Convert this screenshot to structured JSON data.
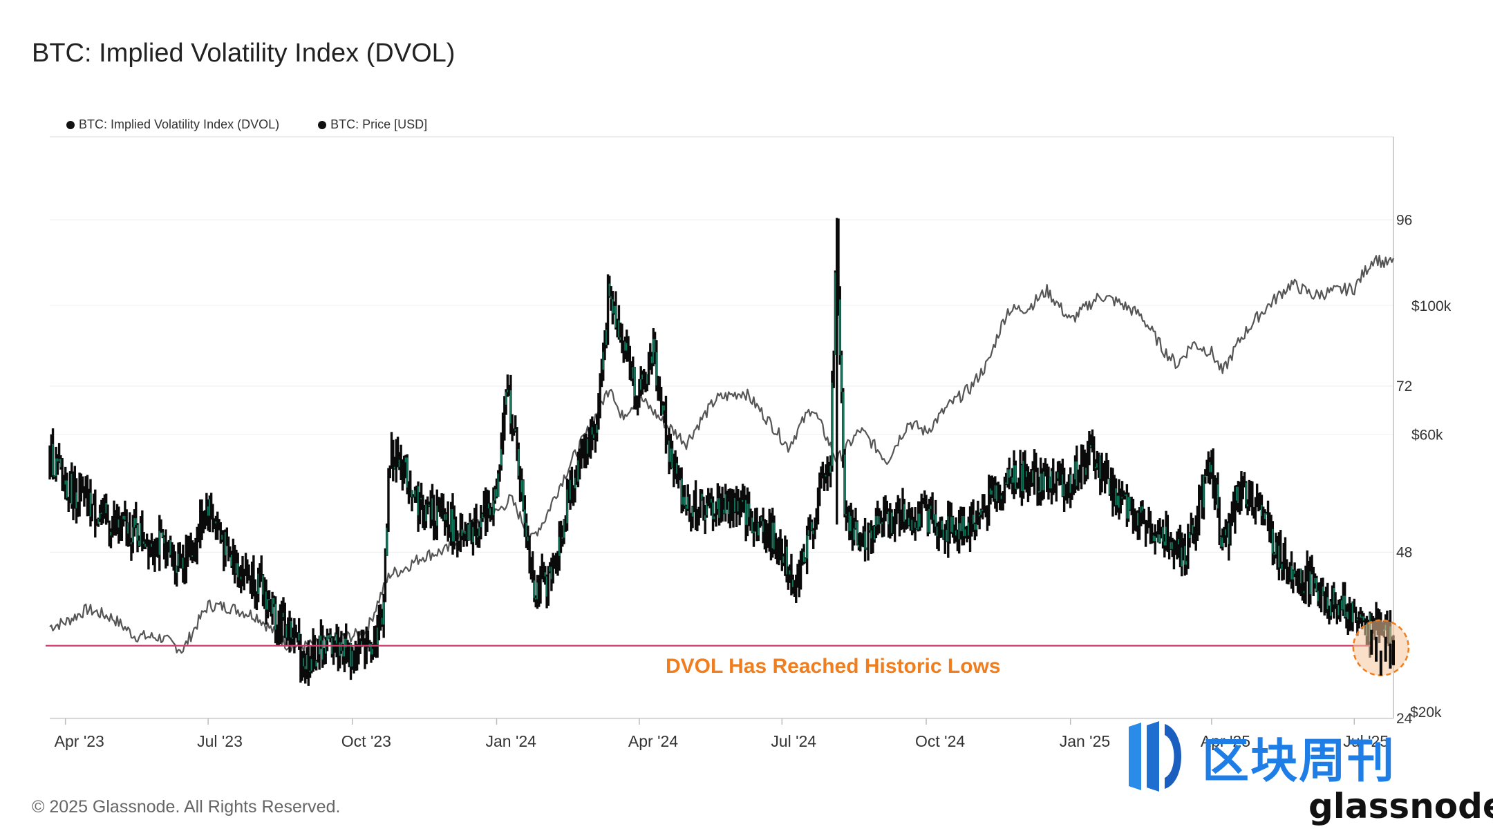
{
  "header": {
    "title": "BTC: Implied Volatility Index (DVOL)"
  },
  "footer": {
    "copyright": "© 2025 Glassnode. All Rights Reserved."
  },
  "watermark": {
    "cn_text": "区块周刊",
    "brand": "glassnode"
  },
  "colors": {
    "dvol": "#0a0a0a",
    "dvol_body": "#0e7a5e",
    "price": "#555555",
    "threshold": "#d63a6a",
    "annotation": "#f07d1e",
    "highlight_fill": "#f6c79a"
  },
  "chart_data": {
    "type": "line",
    "title": "BTC: Implied Volatility Index (DVOL)",
    "legend": [
      "BTC: Implied Volatility Index (DVOL)",
      "BTC: Price [USD]"
    ],
    "legend_position": "top-left",
    "x_ticks": [
      "Apr '23",
      "Jul '23",
      "Oct '23",
      "Jan '24",
      "Apr '24",
      "Jul '24",
      "Oct '24",
      "Jan '25",
      "Apr '25",
      "Jul '25"
    ],
    "xlim": [
      "2023-03-22",
      "2025-07-26"
    ],
    "y_right": {
      "ticks": [
        24,
        48,
        72,
        96
      ],
      "range": [
        24,
        108
      ],
      "label": ""
    },
    "y_price": {
      "ticks": [
        "$20k",
        "$60k",
        "$100k"
      ],
      "values": [
        20000,
        60000,
        100000
      ],
      "scale": "log"
    },
    "series": [
      {
        "name": "BTC: Implied Volatility Index (DVOL)",
        "x": [
          "2023-03-22",
          "2023-04-01",
          "2023-04-15",
          "2023-05-01",
          "2023-05-15",
          "2023-06-01",
          "2023-06-10",
          "2023-06-20",
          "2023-07-01",
          "2023-07-15",
          "2023-08-01",
          "2023-08-15",
          "2023-08-25",
          "2023-09-01",
          "2023-09-10",
          "2023-09-20",
          "2023-10-01",
          "2023-10-10",
          "2023-10-20",
          "2023-10-25",
          "2023-11-01",
          "2023-11-15",
          "2023-12-01",
          "2023-12-10",
          "2023-12-20",
          "2024-01-01",
          "2024-01-08",
          "2024-01-15",
          "2024-01-25",
          "2024-02-05",
          "2024-02-15",
          "2024-02-25",
          "2024-03-05",
          "2024-03-12",
          "2024-03-20",
          "2024-04-01",
          "2024-04-10",
          "2024-04-20",
          "2024-05-01",
          "2024-05-15",
          "2024-06-01",
          "2024-06-15",
          "2024-07-01",
          "2024-07-10",
          "2024-07-20",
          "2024-08-01",
          "2024-08-05",
          "2024-08-10",
          "2024-08-20",
          "2024-09-01",
          "2024-09-15",
          "2024-10-01",
          "2024-10-15",
          "2024-11-01",
          "2024-11-12",
          "2024-11-25",
          "2024-12-05",
          "2024-12-20",
          "2025-01-01",
          "2025-01-15",
          "2025-02-01",
          "2025-02-15",
          "2025-03-01",
          "2025-03-15",
          "2025-04-01",
          "2025-04-08",
          "2025-04-20",
          "2025-05-01",
          "2025-05-15",
          "2025-06-01",
          "2025-06-15",
          "2025-07-01",
          "2025-07-10",
          "2025-07-20",
          "2025-07-26"
        ],
        "y": [
          62,
          58,
          55,
          52,
          51,
          49,
          47,
          48,
          55,
          47,
          44,
          38,
          36,
          32,
          34,
          35,
          33,
          34,
          38,
          62,
          61,
          54,
          53,
          49,
          52,
          56,
          72,
          60,
          43,
          44,
          55,
          63,
          66,
          85,
          80,
          70,
          77,
          62,
          55,
          54,
          55,
          52,
          49,
          43,
          52,
          62,
          95,
          52,
          50,
          52,
          53,
          53,
          51,
          52,
          56,
          59,
          59,
          58,
          58,
          62,
          55,
          53,
          51,
          47,
          62,
          48,
          58,
          54,
          47,
          44,
          41,
          39,
          37,
          38,
          33
        ]
      },
      {
        "name": "BTC: Price [USD]",
        "x": [
          "2023-03-22",
          "2023-04-01",
          "2023-04-15",
          "2023-05-01",
          "2023-05-15",
          "2023-06-01",
          "2023-06-15",
          "2023-07-01",
          "2023-07-15",
          "2023-08-01",
          "2023-08-20",
          "2023-09-01",
          "2023-09-15",
          "2023-10-01",
          "2023-10-10",
          "2023-10-25",
          "2023-11-01",
          "2023-11-15",
          "2023-12-01",
          "2023-12-15",
          "2024-01-01",
          "2024-01-10",
          "2024-01-23",
          "2024-02-01",
          "2024-02-15",
          "2024-03-01",
          "2024-03-14",
          "2024-03-20",
          "2024-04-01",
          "2024-04-15",
          "2024-05-01",
          "2024-05-20",
          "2024-06-07",
          "2024-06-20",
          "2024-07-05",
          "2024-07-20",
          "2024-08-05",
          "2024-08-20",
          "2024-09-06",
          "2024-09-20",
          "2024-10-01",
          "2024-10-15",
          "2024-10-29",
          "2024-11-10",
          "2024-11-15",
          "2024-11-22",
          "2024-12-05",
          "2024-12-17",
          "2025-01-01",
          "2025-01-20",
          "2025-02-01",
          "2025-02-15",
          "2025-03-01",
          "2025-03-10",
          "2025-03-20",
          "2025-04-01",
          "2025-04-08",
          "2025-04-20",
          "2025-05-01",
          "2025-05-22",
          "2025-06-05",
          "2025-06-20",
          "2025-07-01",
          "2025-07-14",
          "2025-07-20",
          "2025-07-26"
        ],
        "y": [
          28000,
          28500,
          30000,
          29000,
          27000,
          26800,
          25500,
          30500,
          30200,
          29200,
          26100,
          25900,
          26500,
          27000,
          27400,
          34500,
          35000,
          37000,
          38000,
          42000,
          44000,
          46500,
          39500,
          43000,
          52000,
          62000,
          73000,
          64000,
          69500,
          63500,
          58000,
          69000,
          71000,
          64500,
          57000,
          66800,
          54000,
          61000,
          54000,
          63000,
          60500,
          67000,
          72000,
          80000,
          88000,
          98000,
          99000,
          106000,
          94000,
          104000,
          101000,
          96000,
          84000,
          79000,
          86000,
          83000,
          76500,
          88000,
          96000,
          109000,
          104000,
          106000,
          107000,
          121000,
          118000,
          118500
        ]
      }
    ],
    "threshold_line": {
      "value": 34.5
    },
    "annotation": "DVOL Has Reached Historic Lows"
  }
}
